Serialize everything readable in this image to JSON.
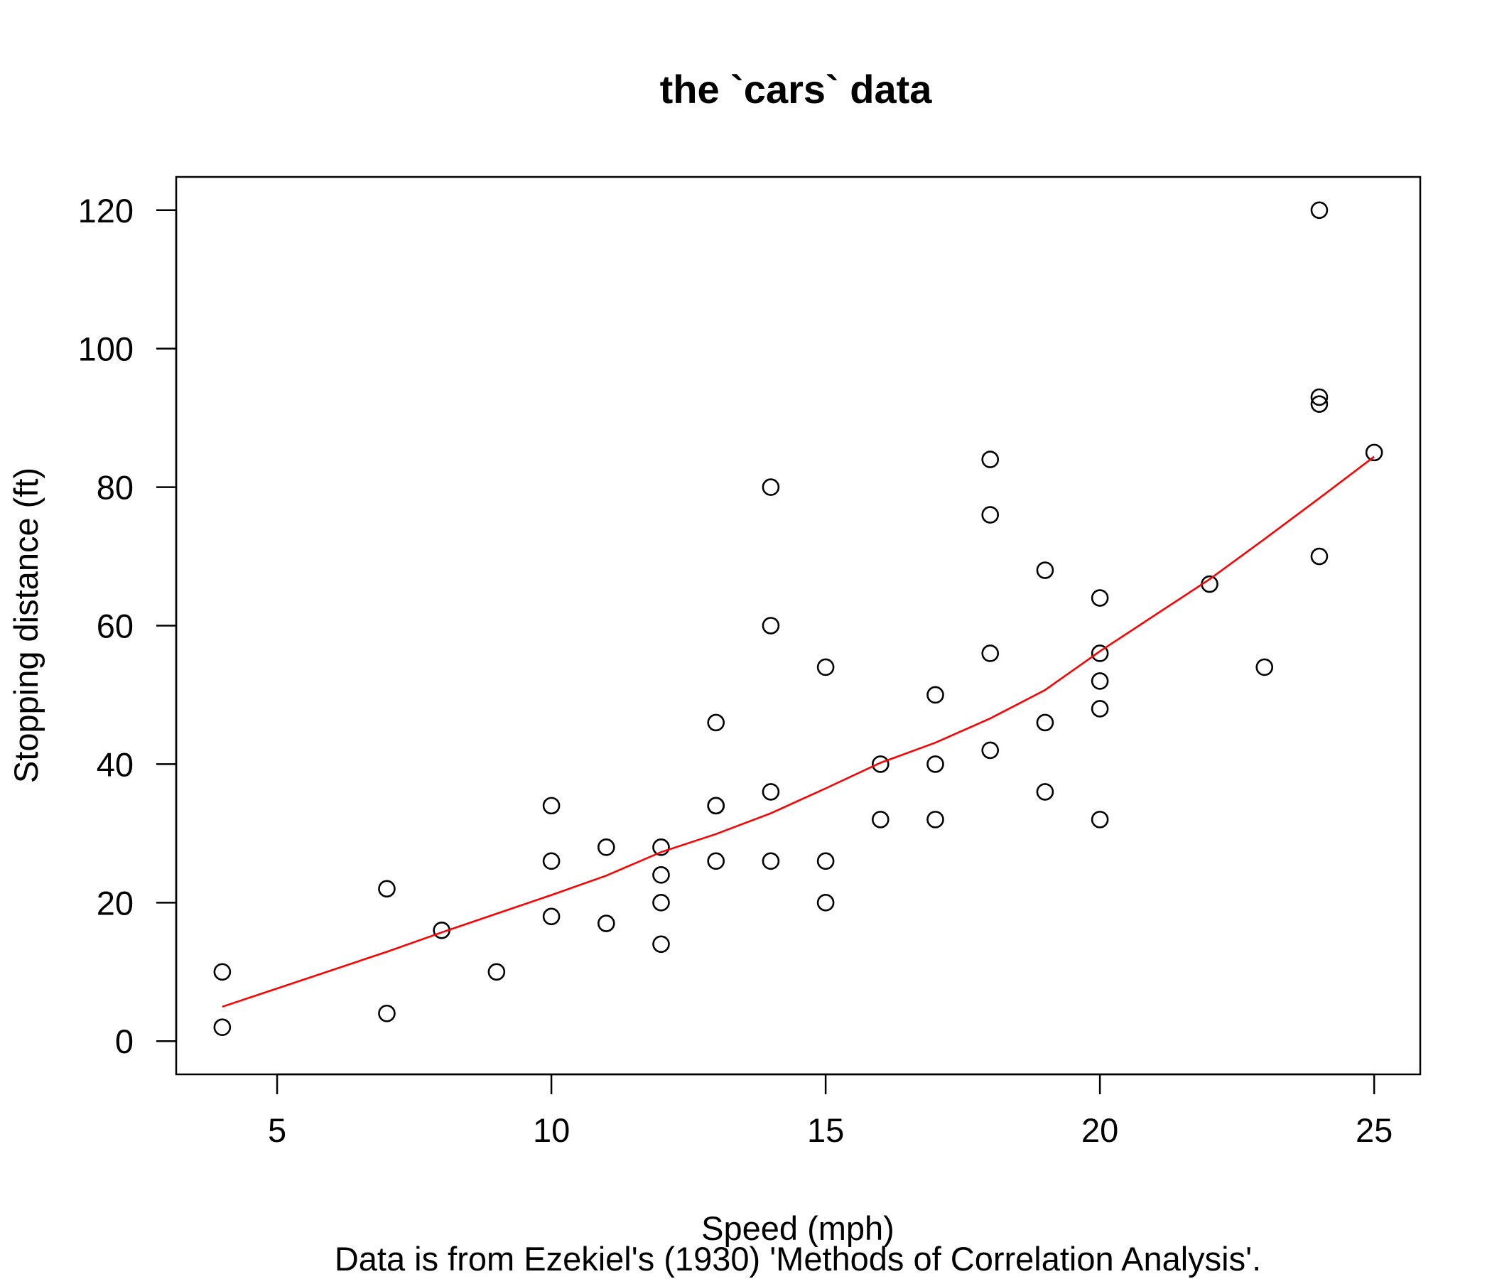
{
  "chart_data": {
    "type": "scatter",
    "title": "the `cars` data",
    "xlabel": "Speed (mph)",
    "ylabel": "Stopping distance (ft)",
    "subtitle": "Data is from Ezekiel's (1930) 'Methods of Correlation Analysis'.",
    "xlim": [
      3.16,
      25.84
    ],
    "ylim": [
      -4.8,
      124.8
    ],
    "x_ticks": [
      5,
      10,
      15,
      20,
      25
    ],
    "y_ticks": [
      0,
      20,
      40,
      60,
      80,
      100,
      120
    ],
    "x_tick_labels": [
      "5",
      "10",
      "15",
      "20",
      "25"
    ],
    "y_tick_labels": [
      "0",
      "20",
      "40",
      "60",
      "80",
      "100",
      "120"
    ],
    "grid": false,
    "points": [
      [
        4,
        2
      ],
      [
        4,
        10
      ],
      [
        7,
        4
      ],
      [
        7,
        22
      ],
      [
        8,
        16
      ],
      [
        9,
        10
      ],
      [
        10,
        18
      ],
      [
        10,
        26
      ],
      [
        10,
        34
      ],
      [
        11,
        17
      ],
      [
        11,
        28
      ],
      [
        12,
        14
      ],
      [
        12,
        20
      ],
      [
        12,
        24
      ],
      [
        12,
        28
      ],
      [
        13,
        26
      ],
      [
        13,
        34
      ],
      [
        13,
        34
      ],
      [
        13,
        46
      ],
      [
        14,
        26
      ],
      [
        14,
        36
      ],
      [
        14,
        60
      ],
      [
        14,
        80
      ],
      [
        15,
        20
      ],
      [
        15,
        26
      ],
      [
        15,
        54
      ],
      [
        16,
        32
      ],
      [
        16,
        40
      ],
      [
        17,
        32
      ],
      [
        17,
        40
      ],
      [
        17,
        50
      ],
      [
        18,
        42
      ],
      [
        18,
        56
      ],
      [
        18,
        76
      ],
      [
        18,
        84
      ],
      [
        19,
        36
      ],
      [
        19,
        46
      ],
      [
        19,
        68
      ],
      [
        20,
        32
      ],
      [
        20,
        48
      ],
      [
        20,
        52
      ],
      [
        20,
        56
      ],
      [
        20,
        64
      ],
      [
        22,
        66
      ],
      [
        23,
        54
      ],
      [
        24,
        70
      ],
      [
        24,
        92
      ],
      [
        24,
        93
      ],
      [
        24,
        120
      ],
      [
        25,
        85
      ]
    ],
    "smooth_line": {
      "color": "#ff0000",
      "points": [
        [
          4,
          4.97
        ],
        [
          7,
          12.9
        ],
        [
          8,
          15.7
        ],
        [
          9,
          18.4
        ],
        [
          10,
          21.1
        ],
        [
          11,
          23.9
        ],
        [
          12,
          27.3
        ],
        [
          13,
          29.9
        ],
        [
          14,
          32.9
        ],
        [
          15,
          36.5
        ],
        [
          16,
          40.2
        ],
        [
          17,
          43.1
        ],
        [
          18,
          46.6
        ],
        [
          19,
          50.7
        ],
        [
          20,
          56.3
        ],
        [
          22,
          66.7
        ],
        [
          23,
          72.5
        ],
        [
          24,
          78.4
        ],
        [
          25,
          84.4
        ]
      ]
    },
    "point_color": "#000000"
  }
}
